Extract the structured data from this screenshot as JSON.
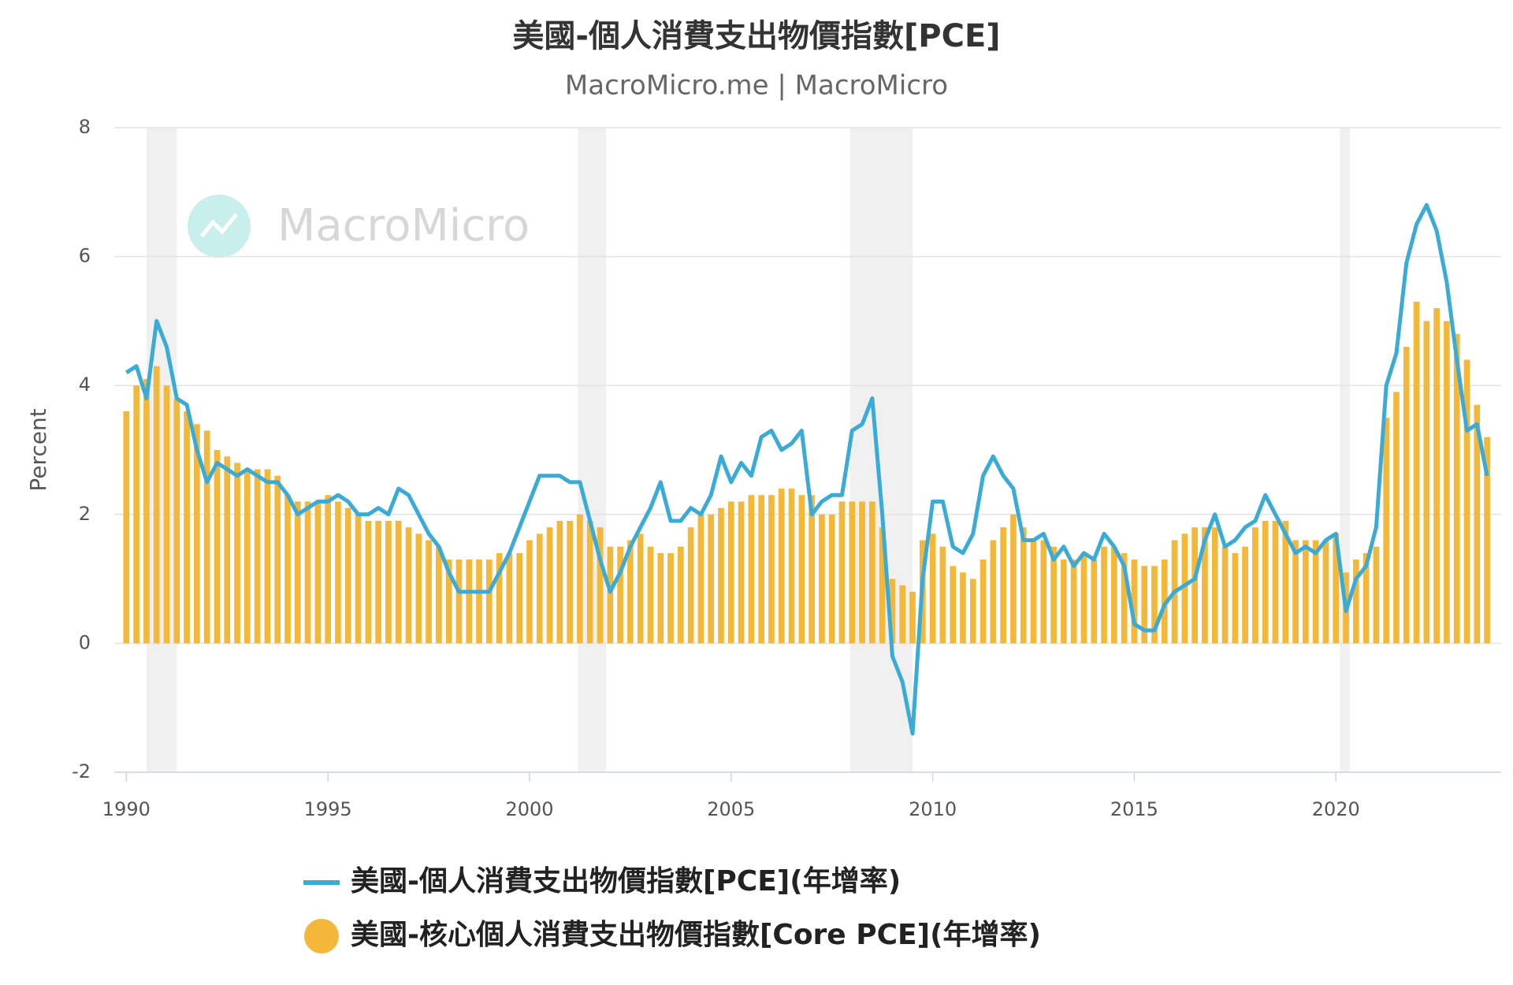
{
  "chart_data": {
    "type": "combo",
    "title": "美國-個人消費支出物價指數[PCE]",
    "subtitle": "MacroMicro.me | MacroMicro",
    "watermark": "MacroMicro",
    "y_label": "Percent",
    "xlim": [
      1989.7,
      2024.1
    ],
    "ylim": [
      -2,
      8
    ],
    "xticks": [
      1990,
      1995,
      2000,
      2005,
      2010,
      2015,
      2020
    ],
    "yticks": [
      -2,
      0,
      2,
      4,
      6,
      8
    ],
    "grid": true,
    "shaded_ranges": [
      [
        1990.5,
        1991.25
      ],
      [
        2001.2,
        2001.9
      ],
      [
        2007.95,
        2009.5
      ],
      [
        2020.1,
        2020.35
      ]
    ],
    "x": [
      1990,
      1990.25,
      1990.5,
      1990.75,
      1991,
      1991.25,
      1991.5,
      1991.75,
      1992,
      1992.25,
      1992.5,
      1992.75,
      1993,
      1993.25,
      1993.5,
      1993.75,
      1994,
      1994.25,
      1994.5,
      1994.75,
      1995,
      1995.25,
      1995.5,
      1995.75,
      1996,
      1996.25,
      1996.5,
      1996.75,
      1997,
      1997.25,
      1997.5,
      1997.75,
      1998,
      1998.25,
      1998.5,
      1998.75,
      1999,
      1999.25,
      1999.5,
      1999.75,
      2000,
      2000.25,
      2000.5,
      2000.75,
      2001,
      2001.25,
      2001.5,
      2001.75,
      2002,
      2002.25,
      2002.5,
      2002.75,
      2003,
      2003.25,
      2003.5,
      2003.75,
      2004,
      2004.25,
      2004.5,
      2004.75,
      2005,
      2005.25,
      2005.5,
      2005.75,
      2006,
      2006.25,
      2006.5,
      2006.75,
      2007,
      2007.25,
      2007.5,
      2007.75,
      2008,
      2008.25,
      2008.5,
      2008.75,
      2009,
      2009.25,
      2009.5,
      2009.75,
      2010,
      2010.25,
      2010.5,
      2010.75,
      2011,
      2011.25,
      2011.5,
      2011.75,
      2012,
      2012.25,
      2012.5,
      2012.75,
      2013,
      2013.25,
      2013.5,
      2013.75,
      2014,
      2014.25,
      2014.5,
      2014.75,
      2015,
      2015.25,
      2015.5,
      2015.75,
      2016,
      2016.25,
      2016.5,
      2016.75,
      2017,
      2017.25,
      2017.5,
      2017.75,
      2018,
      2018.25,
      2018.5,
      2018.75,
      2019,
      2019.25,
      2019.5,
      2019.75,
      2020,
      2020.25,
      2020.5,
      2020.75,
      2021,
      2021.25,
      2021.5,
      2021.75,
      2022,
      2022.25,
      2022.5,
      2022.75,
      2023,
      2023.25,
      2023.5,
      2023.75
    ],
    "series": [
      {
        "name": "美國-個人消費支出物價指數[PCE](年增率)",
        "type": "line",
        "color": "#3aabd6",
        "values": [
          4.2,
          4.3,
          3.8,
          5.0,
          4.6,
          3.8,
          3.7,
          3.0,
          2.5,
          2.8,
          2.7,
          2.6,
          2.7,
          2.6,
          2.5,
          2.5,
          2.3,
          2.0,
          2.1,
          2.2,
          2.2,
          2.3,
          2.2,
          2.0,
          2.0,
          2.1,
          2.0,
          2.4,
          2.3,
          2.0,
          1.7,
          1.5,
          1.1,
          0.8,
          0.8,
          0.8,
          0.8,
          1.1,
          1.4,
          1.8,
          2.2,
          2.6,
          2.6,
          2.6,
          2.5,
          2.5,
          1.9,
          1.3,
          0.8,
          1.1,
          1.5,
          1.8,
          2.1,
          2.5,
          1.9,
          1.9,
          2.1,
          2.0,
          2.3,
          2.9,
          2.5,
          2.8,
          2.6,
          3.2,
          3.3,
          3.0,
          3.1,
          3.3,
          2.0,
          2.2,
          2.3,
          2.3,
          3.3,
          3.4,
          3.8,
          2.0,
          -0.2,
          -0.6,
          -1.4,
          1.0,
          2.2,
          2.2,
          1.5,
          1.4,
          1.7,
          2.6,
          2.9,
          2.6,
          2.4,
          1.6,
          1.6,
          1.7,
          1.3,
          1.5,
          1.2,
          1.4,
          1.3,
          1.7,
          1.5,
          1.2,
          0.3,
          0.2,
          0.2,
          0.6,
          0.8,
          0.9,
          1.0,
          1.6,
          2.0,
          1.5,
          1.6,
          1.8,
          1.9,
          2.3,
          2.0,
          1.7,
          1.4,
          1.5,
          1.4,
          1.6,
          1.7,
          0.5,
          1.0,
          1.2,
          1.8,
          4.0,
          4.5,
          5.9,
          6.5,
          6.8,
          6.4,
          5.6,
          4.4,
          3.3,
          3.4,
          2.6
        ]
      },
      {
        "name": "美國-核心個人消費支出物價指數[Core PCE](年增率)",
        "type": "bar",
        "color": "#f3b83a",
        "values": [
          3.6,
          4.0,
          4.1,
          4.3,
          4.0,
          3.8,
          3.6,
          3.4,
          3.3,
          3.0,
          2.9,
          2.8,
          2.7,
          2.7,
          2.7,
          2.6,
          2.3,
          2.2,
          2.2,
          2.2,
          2.3,
          2.2,
          2.1,
          2.0,
          1.9,
          1.9,
          1.9,
          1.9,
          1.8,
          1.7,
          1.6,
          1.5,
          1.3,
          1.3,
          1.3,
          1.3,
          1.3,
          1.4,
          1.4,
          1.4,
          1.6,
          1.7,
          1.8,
          1.9,
          1.9,
          2.0,
          1.9,
          1.8,
          1.5,
          1.5,
          1.6,
          1.7,
          1.5,
          1.4,
          1.4,
          1.5,
          1.8,
          2.0,
          2.0,
          2.1,
          2.2,
          2.2,
          2.3,
          2.3,
          2.3,
          2.4,
          2.4,
          2.3,
          2.3,
          2.0,
          2.0,
          2.2,
          2.2,
          2.2,
          2.2,
          1.8,
          1.0,
          0.9,
          0.8,
          1.6,
          1.7,
          1.5,
          1.2,
          1.1,
          1.0,
          1.3,
          1.6,
          1.8,
          2.0,
          1.8,
          1.6,
          1.6,
          1.5,
          1.3,
          1.3,
          1.4,
          1.3,
          1.5,
          1.5,
          1.4,
          1.3,
          1.2,
          1.2,
          1.3,
          1.6,
          1.7,
          1.8,
          1.8,
          1.8,
          1.5,
          1.4,
          1.5,
          1.8,
          1.9,
          1.9,
          1.9,
          1.6,
          1.6,
          1.6,
          1.6,
          1.7,
          1.1,
          1.3,
          1.4,
          1.5,
          3.5,
          3.9,
          4.6,
          5.3,
          5.0,
          5.2,
          5.0,
          4.8,
          4.4,
          3.7,
          3.2
        ]
      }
    ]
  }
}
